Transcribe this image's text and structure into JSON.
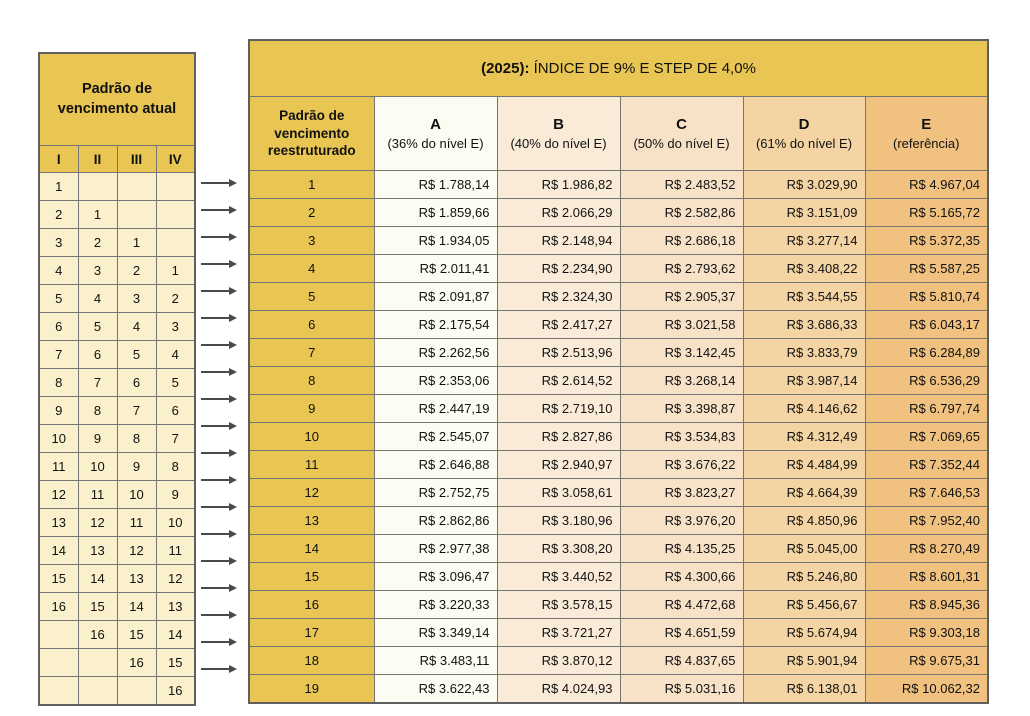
{
  "left_table": {
    "header": "Padrão de\nvencimento atual",
    "columns": [
      "I",
      "II",
      "III",
      "IV"
    ],
    "rows": [
      [
        "1",
        "",
        "",
        ""
      ],
      [
        "2",
        "1",
        "",
        ""
      ],
      [
        "3",
        "2",
        "1",
        ""
      ],
      [
        "4",
        "3",
        "2",
        "1"
      ],
      [
        "5",
        "4",
        "3",
        "2"
      ],
      [
        "6",
        "5",
        "4",
        "3"
      ],
      [
        "7",
        "6",
        "5",
        "4"
      ],
      [
        "8",
        "7",
        "6",
        "5"
      ],
      [
        "9",
        "8",
        "7",
        "6"
      ],
      [
        "10",
        "9",
        "8",
        "7"
      ],
      [
        "11",
        "10",
        "9",
        "8"
      ],
      [
        "12",
        "11",
        "10",
        "9"
      ],
      [
        "13",
        "12",
        "11",
        "10"
      ],
      [
        "14",
        "13",
        "12",
        "11"
      ],
      [
        "15",
        "14",
        "13",
        "12"
      ],
      [
        "16",
        "15",
        "14",
        "13"
      ],
      [
        "",
        "16",
        "15",
        "14"
      ],
      [
        "",
        "",
        "16",
        "15"
      ],
      [
        "",
        "",
        "",
        "16"
      ]
    ]
  },
  "right_table": {
    "title_bold": "(2025):",
    "title_rest": " ÍNDICE DE 9% E STEP DE 4,0%",
    "col1_header": "Padrão de\nvencimento\nreestruturado",
    "columns": [
      {
        "letter": "A",
        "sub": "(36% do nível E)"
      },
      {
        "letter": "B",
        "sub": "(40% do nível E)"
      },
      {
        "letter": "C",
        "sub": "(50% do nível E)"
      },
      {
        "letter": "D",
        "sub": "(61% do nível E)"
      },
      {
        "letter": "E",
        "sub": "(referência)"
      }
    ],
    "rows": [
      [
        "1",
        "R$ 1.788,14",
        "R$ 1.986,82",
        "R$ 2.483,52",
        "R$ 3.029,90",
        "R$ 4.967,04"
      ],
      [
        "2",
        "R$ 1.859,66",
        "R$ 2.066,29",
        "R$ 2.582,86",
        "R$ 3.151,09",
        "R$ 5.165,72"
      ],
      [
        "3",
        "R$ 1.934,05",
        "R$ 2.148,94",
        "R$ 2.686,18",
        "R$ 3.277,14",
        "R$ 5.372,35"
      ],
      [
        "4",
        "R$ 2.011,41",
        "R$ 2.234,90",
        "R$ 2.793,62",
        "R$ 3.408,22",
        "R$ 5.587,25"
      ],
      [
        "5",
        "R$ 2.091,87",
        "R$ 2.324,30",
        "R$ 2.905,37",
        "R$ 3.544,55",
        "R$ 5.810,74"
      ],
      [
        "6",
        "R$ 2.175,54",
        "R$ 2.417,27",
        "R$ 3.021,58",
        "R$ 3.686,33",
        "R$ 6.043,17"
      ],
      [
        "7",
        "R$ 2.262,56",
        "R$ 2.513,96",
        "R$ 3.142,45",
        "R$ 3.833,79",
        "R$ 6.284,89"
      ],
      [
        "8",
        "R$ 2.353,06",
        "R$ 2.614,52",
        "R$ 3.268,14",
        "R$ 3.987,14",
        "R$ 6.536,29"
      ],
      [
        "9",
        "R$ 2.447,19",
        "R$ 2.719,10",
        "R$ 3.398,87",
        "R$ 4.146,62",
        "R$ 6.797,74"
      ],
      [
        "10",
        "R$ 2.545,07",
        "R$ 2.827,86",
        "R$ 3.534,83",
        "R$ 4.312,49",
        "R$ 7.069,65"
      ],
      [
        "11",
        "R$ 2.646,88",
        "R$ 2.940,97",
        "R$ 3.676,22",
        "R$ 4.484,99",
        "R$ 7.352,44"
      ],
      [
        "12",
        "R$ 2.752,75",
        "R$ 3.058,61",
        "R$ 3.823,27",
        "R$ 4.664,39",
        "R$ 7.646,53"
      ],
      [
        "13",
        "R$ 2.862,86",
        "R$ 3.180,96",
        "R$ 3.976,20",
        "R$ 4.850,96",
        "R$ 7.952,40"
      ],
      [
        "14",
        "R$ 2.977,38",
        "R$ 3.308,20",
        "R$ 4.135,25",
        "R$ 5.045,00",
        "R$ 8.270,49"
      ],
      [
        "15",
        "R$ 3.096,47",
        "R$ 3.440,52",
        "R$ 4.300,66",
        "R$ 5.246,80",
        "R$ 8.601,31"
      ],
      [
        "16",
        "R$ 3.220,33",
        "R$ 3.578,15",
        "R$ 4.472,68",
        "R$ 5.456,67",
        "R$ 8.945,36"
      ],
      [
        "17",
        "R$ 3.349,14",
        "R$ 3.721,27",
        "R$ 4.651,59",
        "R$ 5.674,94",
        "R$ 9.303,18"
      ],
      [
        "18",
        "R$ 3.483,11",
        "R$ 3.870,12",
        "R$ 4.837,65",
        "R$ 5.901,94",
        "R$ 9.675,31"
      ],
      [
        "19",
        "R$ 3.622,43",
        "R$ 4.024,93",
        "R$ 5.031,16",
        "R$ 6.138,01",
        "R$ 10.062,32"
      ]
    ]
  },
  "colors": {
    "gold_header": "#E9C553",
    "left_cell_cream": "#FAF1CC",
    "col_a": "#FDFCF3",
    "col_b": "#FAEBD8",
    "col_c": "#F7E2C8",
    "col_d": "#F4D4A3",
    "col_e": "#F1C180",
    "border": "#757575",
    "arrow": "#4A4A4A"
  }
}
